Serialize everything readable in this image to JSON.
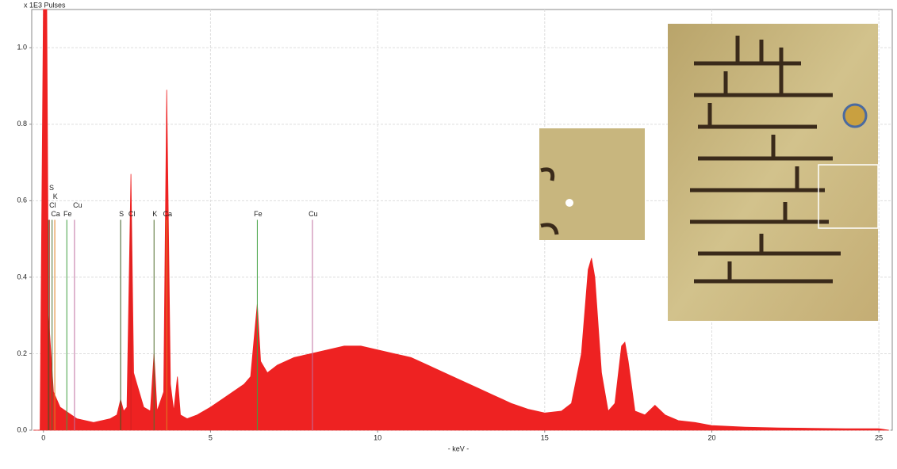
{
  "chart_data": {
    "type": "spectrum",
    "y_axis_label": "x 1E3 Pulses",
    "x_axis_label": "- keV -",
    "color": "#ee2222",
    "grid": true,
    "xlim": [
      -0.35,
      25.4
    ],
    "ylim": [
      0,
      1.1
    ],
    "xticks": [
      0,
      5,
      10,
      15,
      20,
      25
    ],
    "yticks": [
      {
        "value": 0,
        "label": "0.0"
      },
      0.2,
      0.4,
      0.6,
      0.8,
      {
        "value": 1,
        "label": "1.0"
      }
    ],
    "x": [
      -0.3,
      -0.1,
      0,
      0.05,
      0.1,
      0.15,
      0.3,
      0.5,
      1.0,
      1.5,
      2.0,
      2.2,
      2.31,
      2.4,
      2.5,
      2.62,
      2.7,
      2.8,
      3.0,
      3.2,
      3.31,
      3.4,
      3.6,
      3.69,
      3.8,
      3.9,
      4.01,
      4.1,
      4.3,
      4.6,
      5.0,
      5.5,
      6.0,
      6.2,
      6.4,
      6.5,
      6.7,
      7.0,
      7.5,
      8.0,
      8.5,
      9.0,
      9.5,
      10,
      10.5,
      11,
      11.5,
      12,
      12.5,
      13,
      13.5,
      14,
      14.5,
      15,
      15.5,
      15.8,
      16.1,
      16.3,
      16.4,
      16.5,
      16.7,
      16.9,
      17.1,
      17.3,
      17.4,
      17.5,
      17.7,
      18.0,
      18.3,
      18.6,
      19,
      19.5,
      20,
      21,
      22,
      23,
      24,
      25,
      25.3
    ],
    "values": [
      0,
      0,
      1.1,
      1.1,
      1.1,
      0.3,
      0.1,
      0.06,
      0.03,
      0.02,
      0.03,
      0.04,
      0.08,
      0.05,
      0.06,
      0.67,
      0.15,
      0.12,
      0.06,
      0.05,
      0.2,
      0.05,
      0.1,
      0.89,
      0.12,
      0.05,
      0.14,
      0.04,
      0.03,
      0.04,
      0.06,
      0.09,
      0.12,
      0.14,
      0.33,
      0.18,
      0.15,
      0.17,
      0.19,
      0.2,
      0.21,
      0.22,
      0.22,
      0.21,
      0.2,
      0.19,
      0.17,
      0.15,
      0.13,
      0.11,
      0.09,
      0.07,
      0.055,
      0.045,
      0.05,
      0.07,
      0.2,
      0.42,
      0.45,
      0.4,
      0.15,
      0.05,
      0.07,
      0.22,
      0.23,
      0.18,
      0.05,
      0.04,
      0.065,
      0.04,
      0.025,
      0.02,
      0.012,
      0.008,
      0.006,
      0.005,
      0.004,
      0.004,
      0
    ],
    "markers": [
      {
        "label": "Ca",
        "x": 0.34,
        "height": 0.55,
        "color": "#e08020"
      },
      {
        "label": "Cl",
        "x": 0.18,
        "height": 0.55,
        "color": "#d02020"
      },
      {
        "label": "K",
        "x": 0.26,
        "height": 0.55,
        "color": "#507030"
      },
      {
        "label": "S",
        "x": 0.15,
        "height": 0.55,
        "color": "#3a5a20"
      },
      {
        "label": "Fe",
        "x": 0.7,
        "height": 0.55,
        "color": "#40a040"
      },
      {
        "label": "Cu",
        "x": 0.93,
        "height": 0.55,
        "color": "#c070a0"
      },
      {
        "label": "S",
        "x": 2.31,
        "height": 0.55,
        "color": "#3a5a20"
      },
      {
        "label": "Cl",
        "x": 2.62,
        "height": 0.55,
        "color": "#d02020"
      },
      {
        "label": "K",
        "x": 3.31,
        "height": 0.55,
        "color": "#507030"
      },
      {
        "label": "Ca",
        "x": 3.69,
        "height": 0.55,
        "color": "#e08020"
      },
      {
        "label": "Fe",
        "x": 6.4,
        "height": 0.55,
        "color": "#40a040"
      },
      {
        "label": "Cu",
        "x": 8.05,
        "height": 0.55,
        "color": "#c070a0"
      }
    ]
  }
}
